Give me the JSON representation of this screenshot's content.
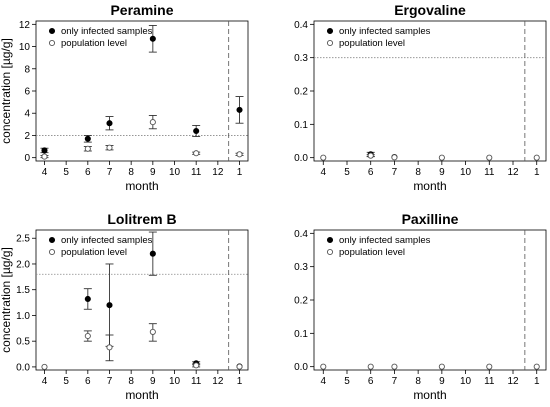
{
  "chart_data": [
    {
      "type": "scatter",
      "title": "Peramine",
      "xlabel": "month",
      "ylabel": "concentration [µg/g]",
      "x_ticks": [
        "4",
        "5",
        "6",
        "7",
        "8",
        "9",
        "10",
        "11",
        "12",
        "1"
      ],
      "ylim": [
        -0.3,
        12.3
      ],
      "y_ticks": [
        0,
        2,
        4,
        6,
        8,
        10,
        12
      ],
      "threshold": 2.0,
      "legend": {
        "placement": "top-left",
        "entries": [
          "only infected samples",
          "population level"
        ]
      },
      "series": [
        {
          "name": "only infected samples",
          "marker": "filled",
          "points": [
            {
              "x": "4",
              "y": 0.65,
              "lo": 0.45,
              "hi": 0.85
            },
            {
              "x": "6",
              "y": 1.7,
              "lo": 1.4,
              "hi": 2.0
            },
            {
              "x": "7",
              "y": 3.1,
              "lo": 2.5,
              "hi": 3.7
            },
            {
              "x": "9",
              "y": 10.7,
              "lo": 9.5,
              "hi": 11.9
            },
            {
              "x": "11",
              "y": 2.4,
              "lo": 1.9,
              "hi": 2.9
            },
            {
              "x": "1",
              "y": 4.3,
              "lo": 3.1,
              "hi": 5.5
            }
          ]
        },
        {
          "name": "population level",
          "marker": "open",
          "points": [
            {
              "x": "4",
              "y": 0.1,
              "lo": 0.0,
              "hi": 0.2
            },
            {
              "x": "6",
              "y": 0.8,
              "lo": 0.6,
              "hi": 1.0
            },
            {
              "x": "7",
              "y": 0.9,
              "lo": 0.7,
              "hi": 1.1
            },
            {
              "x": "9",
              "y": 3.2,
              "lo": 2.6,
              "hi": 3.8
            },
            {
              "x": "11",
              "y": 0.4,
              "lo": 0.3,
              "hi": 0.5
            },
            {
              "x": "1",
              "y": 0.3,
              "lo": 0.2,
              "hi": 0.4
            }
          ]
        }
      ]
    },
    {
      "type": "scatter",
      "title": "Ergovaline",
      "xlabel": "month",
      "ylabel": "",
      "x_ticks": [
        "4",
        "5",
        "6",
        "7",
        "8",
        "9",
        "10",
        "11",
        "12",
        "1"
      ],
      "ylim": [
        -0.01,
        0.41
      ],
      "y_ticks": [
        0.0,
        0.1,
        0.2,
        0.3,
        0.4
      ],
      "threshold": 0.3,
      "legend": {
        "placement": "top-left",
        "entries": [
          "only infected samples",
          "population level"
        ]
      },
      "series": [
        {
          "name": "only infected samples",
          "marker": "filled",
          "points": [
            {
              "x": "6",
              "y": 0.01,
              "lo": 0.004,
              "hi": 0.016
            },
            {
              "x": "7",
              "y": 0.002,
              "lo": 0.0,
              "hi": 0.004
            }
          ]
        },
        {
          "name": "population level",
          "marker": "open",
          "points": [
            {
              "x": "4",
              "y": 0.0,
              "lo": 0.0,
              "hi": 0.0
            },
            {
              "x": "6",
              "y": 0.006,
              "lo": 0.003,
              "hi": 0.009
            },
            {
              "x": "7",
              "y": 0.001,
              "lo": 0.0,
              "hi": 0.002
            },
            {
              "x": "9",
              "y": 0.0,
              "lo": 0.0,
              "hi": 0.0
            },
            {
              "x": "11",
              "y": 0.0,
              "lo": 0.0,
              "hi": 0.0
            },
            {
              "x": "1",
              "y": 0.0,
              "lo": 0.0,
              "hi": 0.0
            }
          ]
        }
      ]
    },
    {
      "type": "scatter",
      "title": "Lolitrem B",
      "xlabel": "month",
      "ylabel": "concentration [µg/g]",
      "x_ticks": [
        "4",
        "5",
        "6",
        "7",
        "8",
        "9",
        "10",
        "11",
        "12",
        "1"
      ],
      "ylim": [
        -0.06,
        2.66
      ],
      "y_ticks": [
        0.0,
        0.5,
        1.0,
        1.5,
        2.0,
        2.5
      ],
      "threshold": 1.8,
      "legend": {
        "placement": "top-left",
        "entries": [
          "only infected samples",
          "population level"
        ]
      },
      "series": [
        {
          "name": "only infected samples",
          "marker": "filled",
          "points": [
            {
              "x": "6",
              "y": 1.32,
              "lo": 1.12,
              "hi": 1.52
            },
            {
              "x": "7",
              "y": 1.2,
              "lo": 0.4,
              "hi": 2.0
            },
            {
              "x": "9",
              "y": 2.2,
              "lo": 1.78,
              "hi": 2.62
            },
            {
              "x": "11",
              "y": 0.07,
              "lo": 0.04,
              "hi": 0.1
            },
            {
              "x": "1",
              "y": 0.01,
              "lo": 0.0,
              "hi": 0.02
            }
          ]
        },
        {
          "name": "population level",
          "marker": "open",
          "points": [
            {
              "x": "4",
              "y": 0.0,
              "lo": 0.0,
              "hi": 0.0
            },
            {
              "x": "6",
              "y": 0.6,
              "lo": 0.5,
              "hi": 0.7
            },
            {
              "x": "7",
              "y": 0.38,
              "lo": 0.12,
              "hi": 0.62
            },
            {
              "x": "9",
              "y": 0.68,
              "lo": 0.5,
              "hi": 0.84
            },
            {
              "x": "11",
              "y": 0.03,
              "lo": 0.0,
              "hi": 0.06
            },
            {
              "x": "1",
              "y": 0.005,
              "lo": 0.0,
              "hi": 0.01
            }
          ]
        }
      ]
    },
    {
      "type": "scatter",
      "title": "Paxilline",
      "xlabel": "month",
      "ylabel": "",
      "x_ticks": [
        "4",
        "5",
        "6",
        "7",
        "8",
        "9",
        "10",
        "11",
        "12",
        "1"
      ],
      "ylim": [
        -0.01,
        0.41
      ],
      "y_ticks": [
        0.0,
        0.1,
        0.2,
        0.3,
        0.4
      ],
      "threshold": null,
      "legend": {
        "placement": "top-left",
        "entries": [
          "only infected samples",
          "population level"
        ]
      },
      "series": [
        {
          "name": "only infected samples",
          "marker": "filled",
          "points": []
        },
        {
          "name": "population level",
          "marker": "open",
          "points": [
            {
              "x": "4",
              "y": 0.0,
              "lo": 0.0,
              "hi": 0.0
            },
            {
              "x": "6",
              "y": 0.0,
              "lo": 0.0,
              "hi": 0.0
            },
            {
              "x": "7",
              "y": 0.0,
              "lo": 0.0,
              "hi": 0.0
            },
            {
              "x": "9",
              "y": 0.0,
              "lo": 0.0,
              "hi": 0.0
            },
            {
              "x": "11",
              "y": 0.0,
              "lo": 0.0,
              "hi": 0.0
            },
            {
              "x": "1",
              "y": 0.0,
              "lo": 0.0,
              "hi": 0.0
            }
          ]
        }
      ]
    }
  ]
}
